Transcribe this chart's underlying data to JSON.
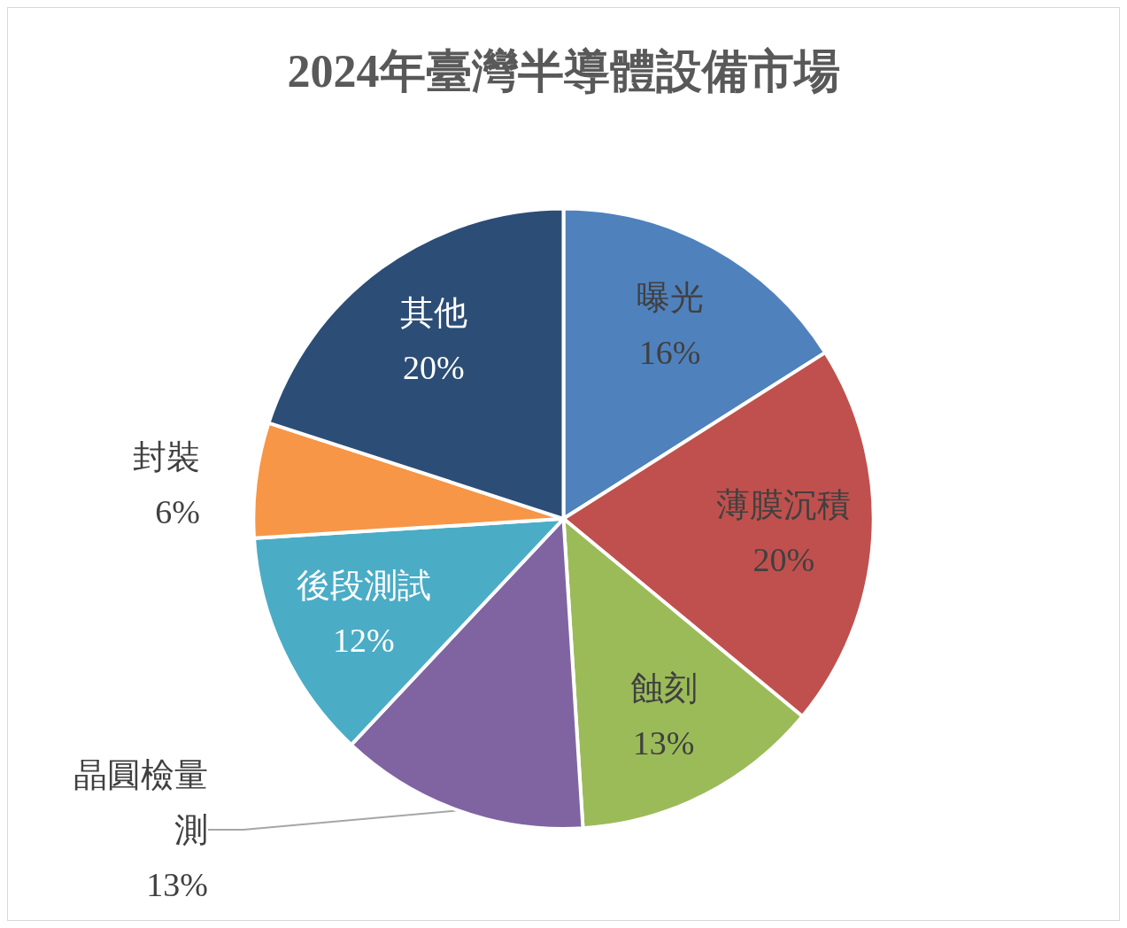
{
  "chart_data": {
    "type": "pie",
    "title": "2024年臺灣半導體設備市場",
    "categories": [
      "曝光",
      "薄膜沉積",
      "蝕刻",
      "晶圓檢量測",
      "後段測試",
      "封裝",
      "其他"
    ],
    "values": [
      16,
      20,
      13,
      13,
      12,
      6,
      20
    ],
    "colors": [
      "#4f81bd",
      "#c0504d",
      "#9bbb59",
      "#8064a2",
      "#4bacc6",
      "#f79646",
      "#2c4d75"
    ],
    "value_labels": [
      "16%",
      "20%",
      "13%",
      "13%",
      "12%",
      "6%",
      "20%"
    ],
    "legend": false
  }
}
